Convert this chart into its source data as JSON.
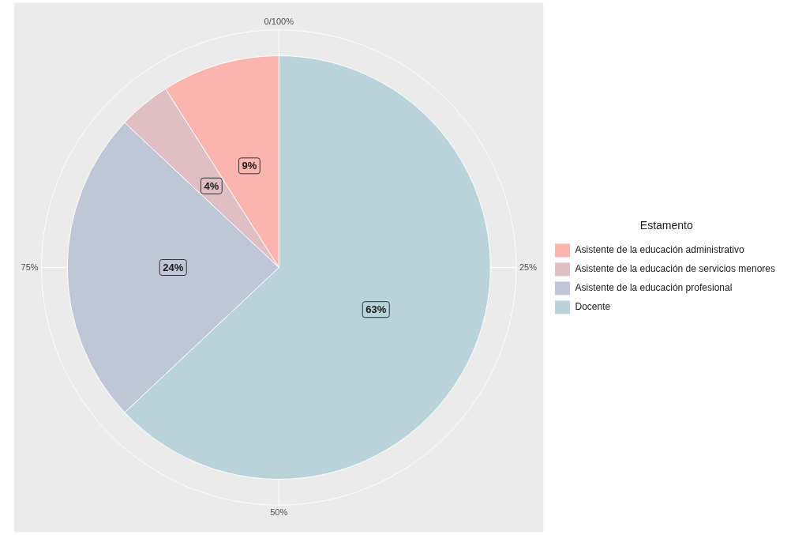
{
  "chart_data": {
    "type": "pie",
    "legend_title": "Estamento",
    "legend": "right",
    "grid": true,
    "categories": [
      "Asistente de la educación administrativo",
      "Asistente de la educación de servicios menores",
      "Asistente de la educación profesional",
      "Docente"
    ],
    "values": [
      9,
      4,
      24,
      63
    ],
    "colors": [
      "#fbb4ae",
      "#dfbfc4",
      "#bfc6d7",
      "#b8d4da"
    ],
    "value_labels": [
      "9%",
      "4%",
      "24%",
      "63%"
    ],
    "annotations": [
      "0/100%",
      "25%",
      "50%",
      "75%"
    ]
  }
}
